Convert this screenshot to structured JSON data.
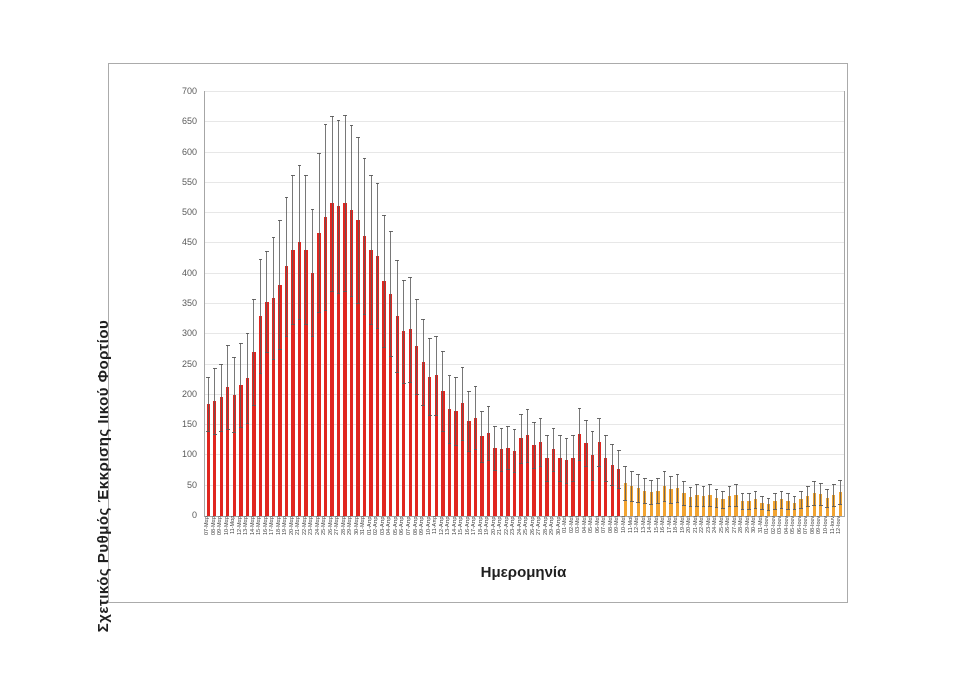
{
  "colors": {
    "bar_red": "#e02620",
    "bar_orange": "#f2a431",
    "error_bar": "#5a5a5a",
    "gridline": "#e7e7e7",
    "plot_border": "#a6a6a6",
    "frame_border": "#ababab",
    "tick_text": "#595959",
    "title_text": "#1f1f1f"
  },
  "y_axis": {
    "title": "Σχετικός Ρυθμός Έκκρισης Ιικού Φορτίου",
    "ticks": [
      "0",
      "50",
      "100",
      "150",
      "200",
      "250",
      "300",
      "350",
      "400",
      "450",
      "500",
      "550",
      "600",
      "650",
      "700"
    ]
  },
  "x_axis": {
    "title": "Ημερομηνία"
  },
  "chart_data": {
    "type": "bar",
    "title": "",
    "xlabel": "Ημερομηνία",
    "ylabel": "Σχετικός Ρυθμός Έκκρισης Ιικού Φορτίου",
    "ylim": [
      0,
      700
    ],
    "ytick_step": 50,
    "grid": true,
    "legend": "none",
    "red_bar_count": 64,
    "note_colors": "first 64 bars red (07-Μαρ to 09-Μαϊ), remaining 34 bars orange (10-Μαϊ to 12-Ιουν); symmetric error bars",
    "categories": [
      "07-Μαρ",
      "08-Μαρ",
      "09-Μαρ",
      "10-Μαρ",
      "11-Μαρ",
      "12-Μαρ",
      "13-Μαρ",
      "14-Μαρ",
      "15-Μαρ",
      "16-Μαρ",
      "17-Μαρ",
      "18-Μαρ",
      "19-Μαρ",
      "20-Μαρ",
      "21-Μαρ",
      "22-Μαρ",
      "23-Μαρ",
      "24-Μαρ",
      "25-Μαρ",
      "26-Μαρ",
      "27-Μαρ",
      "28-Μαρ",
      "29-Μαρ",
      "30-Μαρ",
      "31-Μαρ",
      "01-Απρ",
      "02-Απρ",
      "03-Απρ",
      "04-Απρ",
      "05-Απρ",
      "06-Απρ",
      "07-Απρ",
      "08-Απρ",
      "09-Απρ",
      "10-Απρ",
      "11-Απρ",
      "12-Απρ",
      "13-Απρ",
      "14-Απρ",
      "15-Απρ",
      "16-Απρ",
      "17-Απρ",
      "18-Απρ",
      "19-Απρ",
      "20-Απρ",
      "21-Απρ",
      "22-Απρ",
      "23-Απρ",
      "24-Απρ",
      "25-Απρ",
      "26-Απρ",
      "27-Απρ",
      "28-Απρ",
      "29-Απρ",
      "30-Απρ",
      "01-Μαϊ",
      "02-Μαϊ",
      "03-Μαϊ",
      "04-Μαϊ",
      "05-Μαϊ",
      "06-Μαϊ",
      "07-Μαϊ",
      "08-Μαϊ",
      "09-Μαϊ",
      "10-Μαϊ",
      "11-Μαϊ",
      "12-Μαϊ",
      "13-Μαϊ",
      "14-Μαϊ",
      "15-Μαϊ",
      "16-Μαϊ",
      "17-Μαϊ",
      "18-Μαϊ",
      "19-Μαϊ",
      "20-Μαϊ",
      "21-Μαϊ",
      "22-Μαϊ",
      "23-Μαϊ",
      "24-Μαϊ",
      "25-Μαϊ",
      "26-Μαϊ",
      "27-Μαϊ",
      "28-Μαϊ",
      "29-Μαϊ",
      "30-Μαϊ",
      "31-Μαϊ",
      "01-Ιουν",
      "02-Ιουν",
      "03-Ιουν",
      "04-Ιουν",
      "05-Ιουν",
      "06-Ιουν",
      "07-Ιουν",
      "08-Ιουν",
      "09-Ιουν",
      "10-Ιουν",
      "11-Ιουν",
      "12-Ιουν"
    ],
    "values": [
      185,
      190,
      196,
      213,
      200,
      216,
      228,
      271,
      330,
      354,
      360,
      382,
      412,
      440,
      453,
      440,
      402,
      468,
      494,
      516,
      511,
      517,
      505,
      488,
      462,
      440,
      430,
      388,
      367,
      330,
      305,
      308,
      280,
      255,
      230,
      232,
      207,
      176,
      174,
      186,
      157,
      162,
      132,
      137,
      112,
      110,
      113,
      108,
      128,
      133,
      118,
      122,
      95,
      110,
      95,
      92,
      96,
      135,
      120,
      100,
      122,
      95,
      85,
      78,
      55,
      50,
      46,
      42,
      40,
      42,
      50,
      44,
      46,
      38,
      32,
      35,
      33,
      35,
      30,
      28,
      33,
      35,
      25,
      25,
      28,
      22,
      20,
      25,
      28,
      25,
      22,
      28,
      33,
      38,
      36,
      30,
      35,
      40
    ],
    "upper_error": [
      230,
      245,
      251,
      283,
      262,
      285,
      302,
      358,
      424,
      437,
      460,
      489,
      527,
      563,
      580,
      563,
      507,
      599,
      648,
      660,
      654,
      662,
      646,
      625,
      591,
      563,
      550,
      497,
      470,
      422,
      390,
      394,
      358,
      326,
      294,
      297,
      273,
      232,
      230,
      246,
      207,
      214,
      174,
      181,
      148,
      145,
      149,
      143,
      169,
      176,
      156,
      161,
      133,
      145,
      133,
      129,
      134,
      178,
      158,
      140,
      161,
      133,
      119,
      109,
      83,
      75,
      69,
      63,
      60,
      63,
      75,
      66,
      69,
      57,
      48,
      53,
      50,
      53,
      45,
      42,
      50,
      53,
      38,
      38,
      42,
      33,
      30,
      38,
      42,
      38,
      33,
      42,
      50,
      57,
      54,
      45,
      53,
      60
    ]
  }
}
